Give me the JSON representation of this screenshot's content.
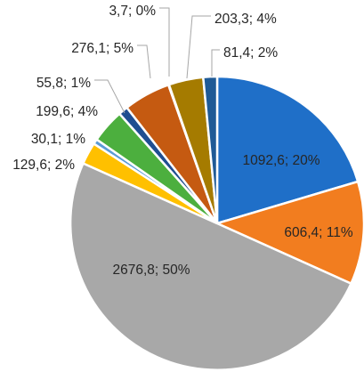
{
  "chart_data": {
    "type": "pie",
    "title": "",
    "start_angle_deg": 0,
    "direction": "clockwise",
    "labels_show": "value; percent",
    "slices": [
      {
        "value": 1092.6,
        "label": "1092,6; 20%",
        "color": "#1f6fc8"
      },
      {
        "value": 606.4,
        "label": "606,4; 11%",
        "color": "#f27d1f"
      },
      {
        "value": 2676.8,
        "label": "2676,8; 50%",
        "color": "#a8a8a8"
      },
      {
        "value": 129.6,
        "label": "129,6; 2%",
        "color": "#ffc000"
      },
      {
        "value": 30.1,
        "label": "30,1; 1%",
        "color": "#5b9bd5"
      },
      {
        "value": 199.6,
        "label": "199,6; 4%",
        "color": "#4caf3e"
      },
      {
        "value": 55.8,
        "label": "55,8; 1%",
        "color": "#1f4e91"
      },
      {
        "value": 276.1,
        "label": "276,1; 5%",
        "color": "#c55a11"
      },
      {
        "value": 3.7,
        "label": "3,7; 0%",
        "color": "#7f7f7f"
      },
      {
        "value": 203.3,
        "label": "203,3; 4%",
        "color": "#a57b00"
      },
      {
        "value": 81.4,
        "label": "81,4; 2%",
        "color": "#1f5a96"
      }
    ]
  }
}
